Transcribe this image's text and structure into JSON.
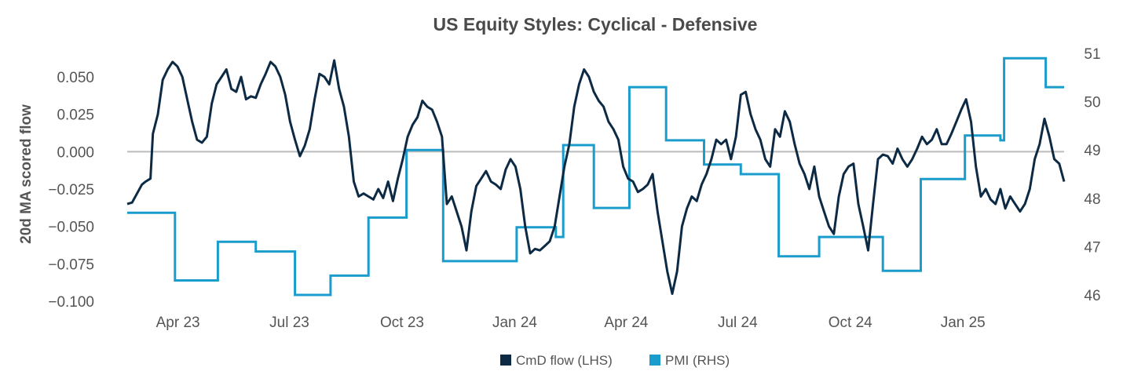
{
  "chart_data": {
    "type": "line",
    "title": "US Equity Styles:  Cyclical - Defensive",
    "ylabel": "20d MA scored flow",
    "y2label": "",
    "ylim": [
      -0.1,
      0.06
    ],
    "y2lim": [
      46,
      51
    ],
    "yticks": [
      "0.050",
      "0.025",
      "0.000",
      "−0.025",
      "−0.050",
      "−0.075",
      "−0.100"
    ],
    "y2ticks": [
      "51",
      "50",
      "49",
      "48",
      "47",
      "46"
    ],
    "xtick_labels": [
      "Apr 23",
      "Jul 23",
      "Oct 23",
      "Jan 24",
      "Apr 24",
      "Jul 24",
      "Oct 24",
      "Jan 25"
    ],
    "zero_line": true,
    "grid": false,
    "legend_position": "bottom-center",
    "colors": {
      "cmd": "#0d2a45",
      "pmi": "#1a9ccc",
      "zero": "#bbbbbb"
    },
    "series": [
      {
        "name": "CmD flow (LHS)",
        "axis": "left",
        "points": [
          [
            "2023-02-16",
            -0.035
          ],
          [
            "2023-02-20",
            -0.034
          ],
          [
            "2023-02-24",
            -0.028
          ],
          [
            "2023-02-28",
            -0.022
          ],
          [
            "2023-03-03",
            -0.02
          ],
          [
            "2023-03-07",
            -0.018
          ],
          [
            "2023-03-09",
            0.012
          ],
          [
            "2023-03-13",
            0.025
          ],
          [
            "2023-03-17",
            0.048
          ],
          [
            "2023-03-21",
            0.055
          ],
          [
            "2023-03-25",
            0.06
          ],
          [
            "2023-03-29",
            0.057
          ],
          [
            "2023-04-02",
            0.05
          ],
          [
            "2023-04-06",
            0.035
          ],
          [
            "2023-04-10",
            0.02
          ],
          [
            "2023-04-14",
            0.008
          ],
          [
            "2023-04-18",
            0.006
          ],
          [
            "2023-04-22",
            0.01
          ],
          [
            "2023-04-26",
            0.032
          ],
          [
            "2023-04-30",
            0.045
          ],
          [
            "2023-05-04",
            0.05
          ],
          [
            "2023-05-08",
            0.055
          ],
          [
            "2023-05-12",
            0.042
          ],
          [
            "2023-05-16",
            0.04
          ],
          [
            "2023-05-20",
            0.05
          ],
          [
            "2023-05-24",
            0.035
          ],
          [
            "2023-05-28",
            0.037
          ],
          [
            "2023-06-01",
            0.036
          ],
          [
            "2023-06-05",
            0.045
          ],
          [
            "2023-06-09",
            0.052
          ],
          [
            "2023-06-13",
            0.06
          ],
          [
            "2023-06-17",
            0.057
          ],
          [
            "2023-06-21",
            0.05
          ],
          [
            "2023-06-25",
            0.038
          ],
          [
            "2023-06-29",
            0.02
          ],
          [
            "2023-07-03",
            0.008
          ],
          [
            "2023-07-07",
            -0.003
          ],
          [
            "2023-07-11",
            0.004
          ],
          [
            "2023-07-15",
            0.015
          ],
          [
            "2023-07-19",
            0.035
          ],
          [
            "2023-07-23",
            0.052
          ],
          [
            "2023-07-27",
            0.05
          ],
          [
            "2023-07-31",
            0.045
          ],
          [
            "2023-08-04",
            0.061
          ],
          [
            "2023-08-08",
            0.042
          ],
          [
            "2023-08-12",
            0.03
          ],
          [
            "2023-08-16",
            0.01
          ],
          [
            "2023-08-20",
            -0.02
          ],
          [
            "2023-08-24",
            -0.03
          ],
          [
            "2023-08-28",
            -0.028
          ],
          [
            "2023-09-01",
            -0.03
          ],
          [
            "2023-09-05",
            -0.032
          ],
          [
            "2023-09-09",
            -0.025
          ],
          [
            "2023-09-13",
            -0.031
          ],
          [
            "2023-09-17",
            -0.02
          ],
          [
            "2023-09-21",
            -0.033
          ],
          [
            "2023-09-25",
            -0.018
          ],
          [
            "2023-09-29",
            -0.005
          ],
          [
            "2023-10-03",
            0.01
          ],
          [
            "2023-10-07",
            0.018
          ],
          [
            "2023-10-11",
            0.023
          ],
          [
            "2023-10-15",
            0.034
          ],
          [
            "2023-10-19",
            0.03
          ],
          [
            "2023-10-23",
            0.028
          ],
          [
            "2023-10-27",
            0.02
          ],
          [
            "2023-10-31",
            0.01
          ],
          [
            "2023-11-04",
            -0.035
          ],
          [
            "2023-11-08",
            -0.03
          ],
          [
            "2023-11-12",
            -0.04
          ],
          [
            "2023-11-16",
            -0.05
          ],
          [
            "2023-11-20",
            -0.066
          ],
          [
            "2023-11-24",
            -0.04
          ],
          [
            "2023-11-28",
            -0.023
          ],
          [
            "2023-12-02",
            -0.018
          ],
          [
            "2023-12-06",
            -0.013
          ],
          [
            "2023-12-10",
            -0.02
          ],
          [
            "2023-12-14",
            -0.022
          ],
          [
            "2023-12-18",
            -0.025
          ],
          [
            "2023-12-22",
            -0.012
          ],
          [
            "2023-12-26",
            -0.005
          ],
          [
            "2023-12-30",
            -0.01
          ],
          [
            "2024-01-03",
            -0.025
          ],
          [
            "2024-01-07",
            -0.05
          ],
          [
            "2024-01-11",
            -0.068
          ],
          [
            "2024-01-15",
            -0.065
          ],
          [
            "2024-01-19",
            -0.066
          ],
          [
            "2024-01-23",
            -0.063
          ],
          [
            "2024-01-27",
            -0.06
          ],
          [
            "2024-01-31",
            -0.05
          ],
          [
            "2024-02-04",
            -0.03
          ],
          [
            "2024-02-08",
            -0.01
          ],
          [
            "2024-02-12",
            0.005
          ],
          [
            "2024-02-16",
            0.03
          ],
          [
            "2024-02-20",
            0.045
          ],
          [
            "2024-02-24",
            0.055
          ],
          [
            "2024-02-28",
            0.05
          ],
          [
            "2024-03-03",
            0.04
          ],
          [
            "2024-03-07",
            0.034
          ],
          [
            "2024-03-11",
            0.03
          ],
          [
            "2024-03-15",
            0.02
          ],
          [
            "2024-03-19",
            0.015
          ],
          [
            "2024-03-23",
            0.008
          ],
          [
            "2024-03-27",
            -0.01
          ],
          [
            "2024-03-31",
            -0.018
          ],
          [
            "2024-04-04",
            -0.02
          ],
          [
            "2024-04-08",
            -0.027
          ],
          [
            "2024-04-12",
            -0.025
          ],
          [
            "2024-04-16",
            -0.022
          ],
          [
            "2024-04-20",
            -0.015
          ],
          [
            "2024-04-24",
            -0.04
          ],
          [
            "2024-04-28",
            -0.06
          ],
          [
            "2024-05-02",
            -0.08
          ],
          [
            "2024-05-06",
            -0.095
          ],
          [
            "2024-05-10",
            -0.08
          ],
          [
            "2024-05-14",
            -0.05
          ],
          [
            "2024-05-18",
            -0.038
          ],
          [
            "2024-05-22",
            -0.03
          ],
          [
            "2024-05-26",
            -0.033
          ],
          [
            "2024-05-30",
            -0.022
          ],
          [
            "2024-06-03",
            -0.015
          ],
          [
            "2024-06-07",
            -0.005
          ],
          [
            "2024-06-11",
            0.008
          ],
          [
            "2024-06-15",
            0.005
          ],
          [
            "2024-06-19",
            0.008
          ],
          [
            "2024-06-23",
            -0.005
          ],
          [
            "2024-06-27",
            0.01
          ],
          [
            "2024-07-01",
            0.038
          ],
          [
            "2024-07-05",
            0.04
          ],
          [
            "2024-07-09",
            0.025
          ],
          [
            "2024-07-13",
            0.015
          ],
          [
            "2024-07-17",
            0.008
          ],
          [
            "2024-07-21",
            -0.005
          ],
          [
            "2024-07-25",
            -0.01
          ],
          [
            "2024-07-29",
            0.015
          ],
          [
            "2024-08-02",
            0.01
          ],
          [
            "2024-08-06",
            0.027
          ],
          [
            "2024-08-10",
            0.02
          ],
          [
            "2024-08-14",
            0.005
          ],
          [
            "2024-08-18",
            -0.008
          ],
          [
            "2024-08-22",
            -0.015
          ],
          [
            "2024-08-26",
            -0.025
          ],
          [
            "2024-08-30",
            -0.01
          ],
          [
            "2024-09-03",
            -0.03
          ],
          [
            "2024-09-07",
            -0.04
          ],
          [
            "2024-09-11",
            -0.05
          ],
          [
            "2024-09-15",
            -0.055
          ],
          [
            "2024-09-19",
            -0.03
          ],
          [
            "2024-09-23",
            -0.015
          ],
          [
            "2024-09-27",
            -0.01
          ],
          [
            "2024-10-01",
            -0.008
          ],
          [
            "2024-10-05",
            -0.035
          ],
          [
            "2024-10-09",
            -0.05
          ],
          [
            "2024-10-13",
            -0.066
          ],
          [
            "2024-10-17",
            -0.035
          ],
          [
            "2024-10-21",
            -0.005
          ],
          [
            "2024-10-25",
            -0.002
          ],
          [
            "2024-10-29",
            -0.003
          ],
          [
            "2024-11-02",
            -0.008
          ],
          [
            "2024-11-06",
            0.002
          ],
          [
            "2024-11-10",
            -0.005
          ],
          [
            "2024-11-14",
            -0.01
          ],
          [
            "2024-11-18",
            -0.005
          ],
          [
            "2024-11-22",
            0.002
          ],
          [
            "2024-11-26",
            0.01
          ],
          [
            "2024-11-30",
            0.005
          ],
          [
            "2024-12-04",
            0.008
          ],
          [
            "2024-12-08",
            0.015
          ],
          [
            "2024-12-12",
            0.005
          ],
          [
            "2024-12-16",
            0.005
          ],
          [
            "2024-12-20",
            0.012
          ],
          [
            "2024-12-24",
            0.02
          ],
          [
            "2024-12-28",
            0.028
          ],
          [
            "2025-01-01",
            0.035
          ],
          [
            "2025-01-05",
            0.02
          ],
          [
            "2025-01-09",
            -0.01
          ],
          [
            "2025-01-13",
            -0.03
          ],
          [
            "2025-01-17",
            -0.025
          ],
          [
            "2025-01-21",
            -0.032
          ],
          [
            "2025-01-25",
            -0.035
          ],
          [
            "2025-01-29",
            -0.025
          ],
          [
            "2025-02-02",
            -0.038
          ],
          [
            "2025-02-06",
            -0.03
          ],
          [
            "2025-02-10",
            -0.035
          ],
          [
            "2025-02-14",
            -0.04
          ],
          [
            "2025-02-18",
            -0.035
          ],
          [
            "2025-02-22",
            -0.025
          ],
          [
            "2025-02-26",
            -0.005
          ],
          [
            "2025-03-02",
            0.005
          ],
          [
            "2025-03-06",
            0.022
          ],
          [
            "2025-03-10",
            0.01
          ],
          [
            "2025-03-14",
            -0.005
          ],
          [
            "2025-03-18",
            -0.008
          ],
          [
            "2025-03-22",
            -0.02
          ]
        ]
      },
      {
        "name": "PMI (RHS)",
        "axis": "right",
        "points": [
          [
            "2023-02-16",
            47.7
          ],
          [
            "2023-03-27",
            47.7
          ],
          [
            "2023-03-27",
            46.3
          ],
          [
            "2023-05-01",
            46.3
          ],
          [
            "2023-05-01",
            47.1
          ],
          [
            "2023-06-01",
            47.1
          ],
          [
            "2023-06-01",
            46.9
          ],
          [
            "2023-07-03",
            46.9
          ],
          [
            "2023-07-03",
            46.0
          ],
          [
            "2023-08-01",
            46.0
          ],
          [
            "2023-08-01",
            46.4
          ],
          [
            "2023-09-01",
            46.4
          ],
          [
            "2023-09-01",
            47.6
          ],
          [
            "2023-10-02",
            47.6
          ],
          [
            "2023-10-02",
            49.0
          ],
          [
            "2023-11-01",
            49.0
          ],
          [
            "2023-11-01",
            46.7
          ],
          [
            "2023-12-31",
            46.7
          ],
          [
            "2023-12-31",
            47.4
          ],
          [
            "2024-02-01",
            47.4
          ],
          [
            "2024-02-01",
            47.2
          ],
          [
            "2024-02-07",
            47.2
          ],
          [
            "2024-02-07",
            49.1
          ],
          [
            "2024-03-03",
            49.1
          ],
          [
            "2024-03-03",
            47.8
          ],
          [
            "2024-04-01",
            47.8
          ],
          [
            "2024-04-01",
            50.3
          ],
          [
            "2024-05-01",
            50.3
          ],
          [
            "2024-05-01",
            49.2
          ],
          [
            "2024-06-01",
            49.2
          ],
          [
            "2024-06-01",
            48.7
          ],
          [
            "2024-07-01",
            48.7
          ],
          [
            "2024-07-01",
            48.5
          ],
          [
            "2024-08-01",
            48.5
          ],
          [
            "2024-08-01",
            46.8
          ],
          [
            "2024-09-03",
            46.8
          ],
          [
            "2024-09-03",
            47.2
          ],
          [
            "2024-10-25",
            47.2
          ],
          [
            "2024-10-25",
            46.5
          ],
          [
            "2024-11-25",
            46.5
          ],
          [
            "2024-11-25",
            48.4
          ],
          [
            "2024-12-31",
            48.4
          ],
          [
            "2024-12-31",
            49.3
          ],
          [
            "2025-01-29",
            49.3
          ],
          [
            "2025-01-29",
            49.2
          ],
          [
            "2025-02-01",
            49.2
          ],
          [
            "2025-02-01",
            50.9
          ],
          [
            "2025-03-07",
            50.9
          ],
          [
            "2025-03-07",
            50.3
          ],
          [
            "2025-03-22",
            50.3
          ]
        ]
      }
    ]
  }
}
